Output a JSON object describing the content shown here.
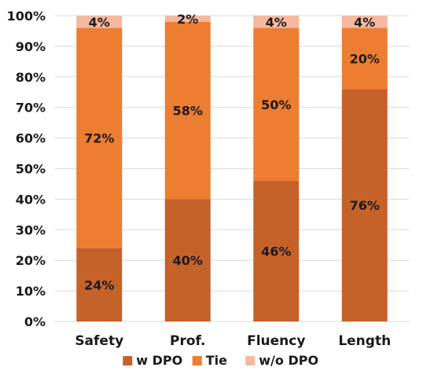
{
  "chart_data": {
    "type": "bar",
    "stacked": true,
    "percent": true,
    "categories": [
      "Safety",
      "Prof.",
      "Fluency",
      "Length"
    ],
    "series": [
      {
        "name": "w DPO",
        "values": [
          24,
          40,
          46,
          76
        ],
        "color": "#c5622a"
      },
      {
        "name": "Tie",
        "values": [
          72,
          58,
          50,
          20
        ],
        "color": "#ed7d31"
      },
      {
        "name": "w/o DPO",
        "values": [
          4,
          2,
          4,
          4
        ],
        "color": "#f4b8a0"
      }
    ],
    "data_labels": [
      [
        "24%",
        "72%",
        "4%"
      ],
      [
        "40%",
        "58%",
        "2%"
      ],
      [
        "46%",
        "50%",
        "4%"
      ],
      [
        "76%",
        "20%",
        "4%"
      ]
    ],
    "yticks": [
      "0%",
      "10%",
      "20%",
      "30%",
      "40%",
      "50%",
      "60%",
      "70%",
      "80%",
      "90%",
      "100%"
    ],
    "ylim": [
      0,
      100
    ],
    "grid": true,
    "legend_position": "bottom"
  }
}
